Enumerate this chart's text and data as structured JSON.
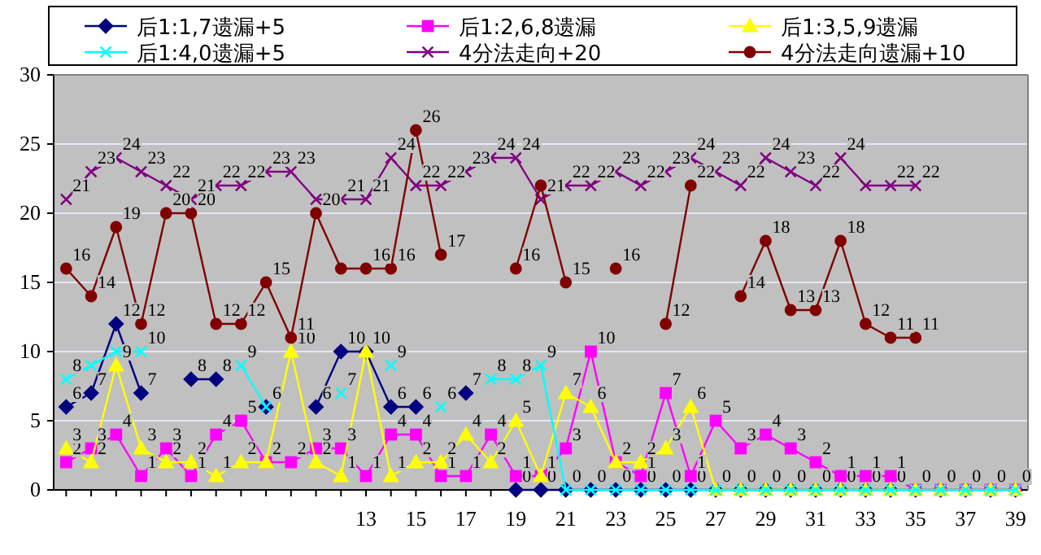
{
  "chart_data": {
    "type": "line",
    "x": [
      1,
      2,
      3,
      4,
      5,
      6,
      7,
      8,
      9,
      10,
      11,
      12,
      13,
      14,
      15,
      16,
      17,
      18,
      19,
      20,
      21,
      22,
      23,
      24,
      25,
      26,
      27,
      28,
      29,
      30,
      31,
      32,
      33,
      34,
      35,
      36,
      37,
      38,
      39
    ],
    "xlim": [
      0.5,
      39.5
    ],
    "xticks": [
      13,
      15,
      17,
      19,
      21,
      23,
      25,
      27,
      29,
      31,
      33,
      35,
      37,
      39
    ],
    "ylim": [
      0,
      30
    ],
    "yticks": [
      0,
      5,
      10,
      15,
      20,
      25,
      30
    ],
    "grid": "y",
    "legend": "top",
    "series": [
      {
        "name": "后1:1,7遗漏+5",
        "color": "#000080",
        "marker": "diamond",
        "values": [
          6,
          7,
          12,
          7,
          null,
          8,
          8,
          null,
          6,
          null,
          6,
          10,
          10,
          6,
          6,
          null,
          7,
          null,
          0,
          0,
          0,
          0,
          0,
          0,
          0,
          0,
          0,
          0,
          0,
          0,
          0,
          0,
          0,
          0,
          0,
          0,
          0,
          0,
          0
        ],
        "value_labels": [
          "6",
          "7",
          "12",
          "7",
          null,
          "8",
          "8",
          null,
          "6",
          null,
          "6",
          "10",
          "10",
          "6",
          "6",
          null,
          "7",
          null,
          "0",
          "0",
          "0",
          "0",
          "0",
          "0",
          "0",
          "0",
          "0",
          "0",
          "0",
          "0",
          "0",
          "0",
          "0",
          "0",
          "0",
          "0",
          "0",
          "0",
          "0"
        ]
      },
      {
        "name": "后1:2,6,8遗漏",
        "color": "#ff00ff",
        "marker": "square",
        "values": [
          2,
          3,
          4,
          1,
          3,
          1,
          4,
          5,
          2,
          2,
          3,
          3,
          1,
          4,
          4,
          1,
          1,
          4,
          1,
          1,
          3,
          10,
          2,
          1,
          7,
          1,
          5,
          3,
          4,
          3,
          2,
          1,
          1,
          1,
          0,
          0,
          0,
          0,
          0
        ],
        "value_labels": [
          "2",
          "3",
          "4",
          "1",
          "3",
          "1",
          "4",
          "5",
          null,
          "2",
          "3",
          "3",
          "1",
          "4",
          "4",
          "1",
          "1",
          "4",
          "1",
          null,
          "3",
          "10",
          null,
          "1",
          "7",
          "1",
          "5",
          "3",
          "4",
          "3",
          "2",
          "1",
          "1",
          "1",
          null,
          null,
          null,
          null,
          null
        ]
      },
      {
        "name": "后1:3,5,9遗漏",
        "color": "#ffff00",
        "marker": "triangle",
        "values": [
          3,
          2,
          9,
          3,
          2,
          2,
          1,
          2,
          2,
          10,
          2,
          1,
          10,
          1,
          2,
          2,
          4,
          2,
          5,
          1,
          7,
          6,
          2,
          2,
          3,
          6,
          0,
          0,
          0,
          0,
          0,
          0,
          0,
          0,
          0,
          0,
          0,
          0,
          0
        ],
        "value_labels": [
          "3",
          "2",
          "9",
          "3",
          "2",
          "2",
          "1",
          "2",
          "2",
          "10",
          "2",
          "1",
          null,
          "1",
          "2",
          "2",
          "4",
          "2",
          "5",
          "1",
          "7",
          "6",
          "2",
          "2",
          "3",
          "6",
          null,
          null,
          null,
          null,
          null,
          null,
          null,
          null,
          null,
          null,
          null,
          null,
          null
        ]
      },
      {
        "name": "后1:4,0遗漏+5",
        "color": "#00ffff",
        "marker": "cross",
        "values": [
          8,
          9,
          10,
          10,
          null,
          null,
          null,
          9,
          6,
          null,
          null,
          7,
          null,
          9,
          null,
          6,
          null,
          8,
          8,
          9,
          0,
          0,
          0,
          0,
          0,
          0,
          0,
          0,
          0,
          0,
          0,
          0,
          0,
          0,
          0,
          0,
          0,
          0,
          0
        ],
        "value_labels": [
          "8",
          null,
          null,
          "10",
          null,
          null,
          null,
          "9",
          null,
          null,
          null,
          "7",
          null,
          "9",
          null,
          "6",
          null,
          "8",
          "8",
          "9",
          null,
          null,
          null,
          null,
          null,
          null,
          null,
          null,
          null,
          null,
          null,
          null,
          null,
          null,
          null,
          null,
          null,
          null,
          null
        ]
      },
      {
        "name": "4分法走向+20",
        "color": "#800080",
        "marker": "cross",
        "values": [
          21,
          23,
          24,
          23,
          22,
          21,
          22,
          22,
          23,
          23,
          21,
          21,
          21,
          24,
          22,
          22,
          23,
          24,
          24,
          21,
          22,
          22,
          23,
          22,
          23,
          24,
          23,
          22,
          24,
          23,
          22,
          24,
          22,
          22,
          22,
          null,
          null,
          null,
          null
        ],
        "value_labels": [
          "21",
          "23",
          "24",
          "23",
          "22",
          "21",
          "22",
          "22",
          "23",
          "23",
          null,
          "21",
          "21",
          "24",
          "22",
          "22",
          "23",
          "24",
          "24",
          "21",
          "22",
          "22",
          "23",
          "22",
          "23",
          "24",
          "23",
          "22",
          "24",
          "23",
          "22",
          "24",
          null,
          "22",
          "22",
          null,
          null,
          null,
          null
        ]
      },
      {
        "name": "4分法走向遗漏+10",
        "color": "#800000",
        "marker": "circle",
        "values": [
          16,
          14,
          19,
          12,
          20,
          20,
          12,
          12,
          15,
          11,
          20,
          16,
          16,
          16,
          26,
          17,
          null,
          null,
          16,
          22,
          15,
          null,
          16,
          null,
          12,
          22,
          null,
          14,
          18,
          13,
          13,
          18,
          12,
          11,
          11,
          null,
          null,
          null,
          null
        ],
        "value_labels": [
          "16",
          "14",
          "19",
          "12",
          "20",
          "20",
          "12",
          "12",
          "15",
          "11",
          "20",
          null,
          "16",
          "16",
          "26",
          "17",
          null,
          null,
          "16",
          null,
          "15",
          null,
          "16",
          null,
          "12",
          "22",
          null,
          "14",
          "18",
          "13",
          "13",
          "18",
          "12",
          "11",
          "11",
          null,
          null,
          null,
          null
        ]
      }
    ]
  }
}
